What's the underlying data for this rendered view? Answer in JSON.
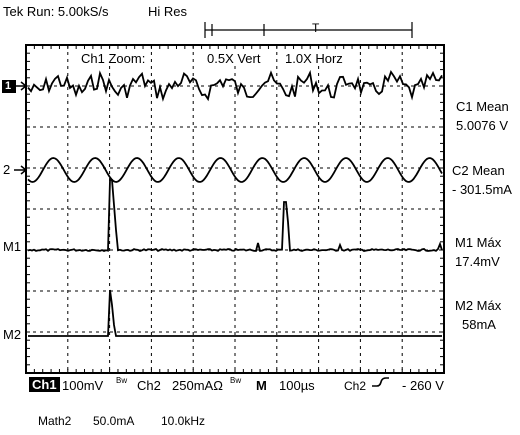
{
  "header": {
    "run_status": "Tek Run: 5.00kS/s",
    "acq_mode": "Hi Res",
    "trigger_marker": "T"
  },
  "zoom": {
    "label": "Ch1 Zoom:",
    "vert": "0.5X Vert",
    "horz": "1.0X Horz"
  },
  "channel_markers": {
    "ch1": "1",
    "ch2": "2",
    "m1": "M1",
    "m2": "M2"
  },
  "measurements": [
    {
      "name": "C1 Mean",
      "value": "5.0076 V"
    },
    {
      "name": "C2 Mean",
      "value": "- 301.5mA"
    },
    {
      "name": "M1 Máx",
      "value": "17.4mV"
    },
    {
      "name": "M2 Máx",
      "value": "58mA"
    }
  ],
  "bottom_bar": {
    "ch1_label": "Ch1",
    "ch1_scale": "100mV",
    "bw1": "Bw",
    "ch2_label": "Ch2",
    "ch2_scale": "250mAΩ",
    "bw2": "Bw",
    "mode": "M",
    "timebase": "100µs",
    "trig_source": "Ch2",
    "trig_level": "- 260 V"
  },
  "math_line": {
    "name": "Math2",
    "scale": "50.0mA",
    "freq": "10.0kHz"
  },
  "colors": {
    "trace": "#000000",
    "grid": "#000000",
    "background": "#ffffff"
  }
}
